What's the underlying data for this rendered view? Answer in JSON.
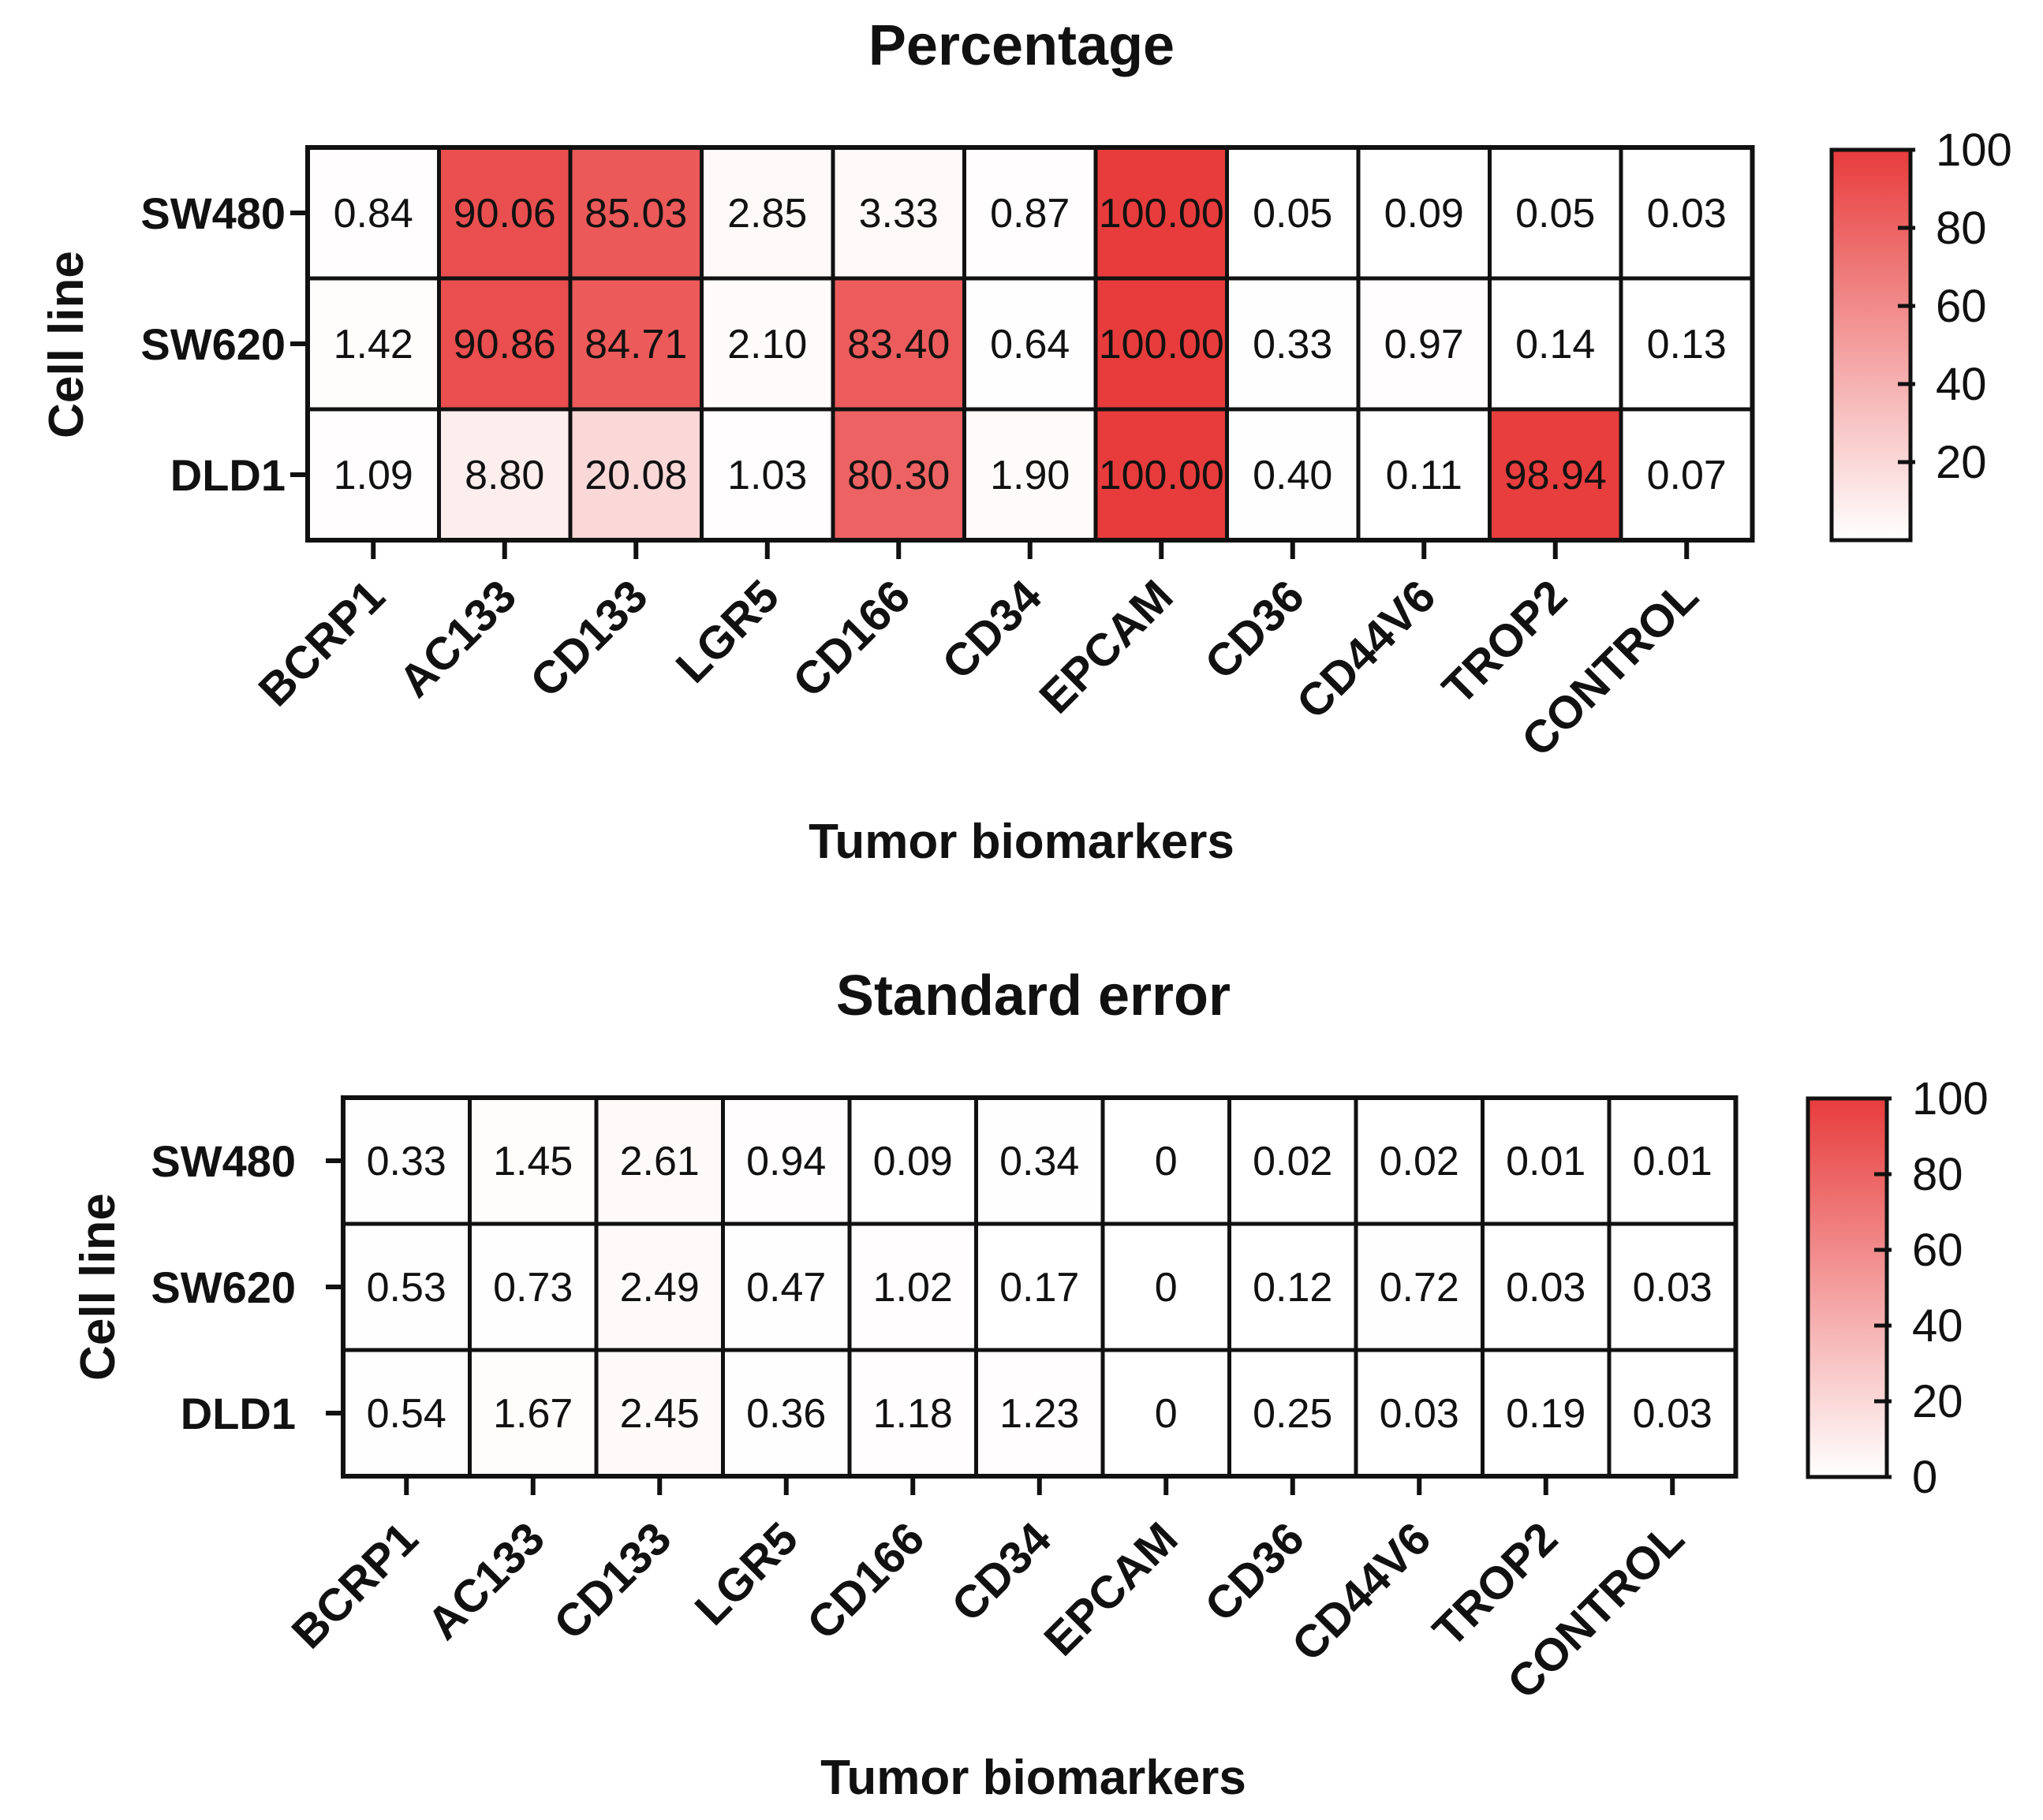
{
  "chart_data": [
    {
      "type": "heatmap",
      "title": "Percentage",
      "xlabel": "Tumor biomarkers",
      "ylabel": "Cell line",
      "rows": [
        "SW480",
        "SW620",
        "DLD1"
      ],
      "columns": [
        "BCRP1",
        "AC133",
        "CD133",
        "LGR5",
        "CD166",
        "CD34",
        "EPCAM",
        "CD36",
        "CD44V6",
        "TROP2",
        "CONTROL"
      ],
      "values": [
        [
          0.84,
          90.06,
          85.03,
          2.85,
          3.33,
          0.87,
          100.0,
          0.05,
          0.09,
          0.05,
          0.03
        ],
        [
          1.42,
          90.86,
          84.71,
          2.1,
          83.4,
          0.64,
          100.0,
          0.33,
          0.97,
          0.14,
          0.13
        ],
        [
          1.09,
          8.8,
          20.08,
          1.03,
          80.3,
          1.9,
          100.0,
          0.4,
          0.11,
          98.94,
          0.07
        ]
      ],
      "value_labels": [
        [
          "0.84",
          "90.06",
          "85.03",
          "2.85",
          "3.33",
          "0.87",
          "100.00",
          "0.05",
          "0.09",
          "0.05",
          "0.03"
        ],
        [
          "1.42",
          "90.86",
          "84.71",
          "2.10",
          "83.40",
          "0.64",
          "100.00",
          "0.33",
          "0.97",
          "0.14",
          "0.13"
        ],
        [
          "1.09",
          "8.80",
          "20.08",
          "1.03",
          "80.30",
          "1.90",
          "100.00",
          "0.40",
          "0.11",
          "98.94",
          "0.07"
        ]
      ],
      "colorbar": {
        "range": [
          0,
          100
        ],
        "ticks": [
          20,
          40,
          60,
          80,
          100
        ],
        "tick_labels": [
          "20",
          "40",
          "60",
          "80",
          "100"
        ],
        "low_color": "#ffffff",
        "high_color": "#e83c3c"
      }
    },
    {
      "type": "heatmap",
      "title": "Standard error",
      "xlabel": "Tumor biomarkers",
      "ylabel": "Cell line",
      "rows": [
        "SW480",
        "SW620",
        "DLD1"
      ],
      "columns": [
        "BCRP1",
        "AC133",
        "CD133",
        "LGR5",
        "CD166",
        "CD34",
        "EPCAM",
        "CD36",
        "CD44V6",
        "TROP2",
        "CONTROL"
      ],
      "values": [
        [
          0.33,
          1.45,
          2.61,
          0.94,
          0.09,
          0.34,
          0,
          0.02,
          0.02,
          0.01,
          0.01
        ],
        [
          0.53,
          0.73,
          2.49,
          0.47,
          1.02,
          0.17,
          0,
          0.12,
          0.72,
          0.03,
          0.03
        ],
        [
          0.54,
          1.67,
          2.45,
          0.36,
          1.18,
          1.23,
          0,
          0.25,
          0.03,
          0.19,
          0.03
        ]
      ],
      "value_labels": [
        [
          "0.33",
          "1.45",
          "2.61",
          "0.94",
          "0.09",
          "0.34",
          "0",
          "0.02",
          "0.02",
          "0.01",
          "0.01"
        ],
        [
          "0.53",
          "0.73",
          "2.49",
          "0.47",
          "1.02",
          "0.17",
          "0",
          "0.12",
          "0.72",
          "0.03",
          "0.03"
        ],
        [
          "0.54",
          "1.67",
          "2.45",
          "0.36",
          "1.18",
          "1.23",
          "0",
          "0.25",
          "0.03",
          "0.19",
          "0.03"
        ]
      ],
      "colorbar": {
        "range": [
          0,
          100
        ],
        "ticks": [
          0,
          20,
          40,
          60,
          80,
          100
        ],
        "tick_labels": [
          "0",
          "20",
          "40",
          "60",
          "80",
          "100"
        ],
        "low_color": "#ffffff",
        "high_color": "#e83c3c"
      }
    }
  ]
}
